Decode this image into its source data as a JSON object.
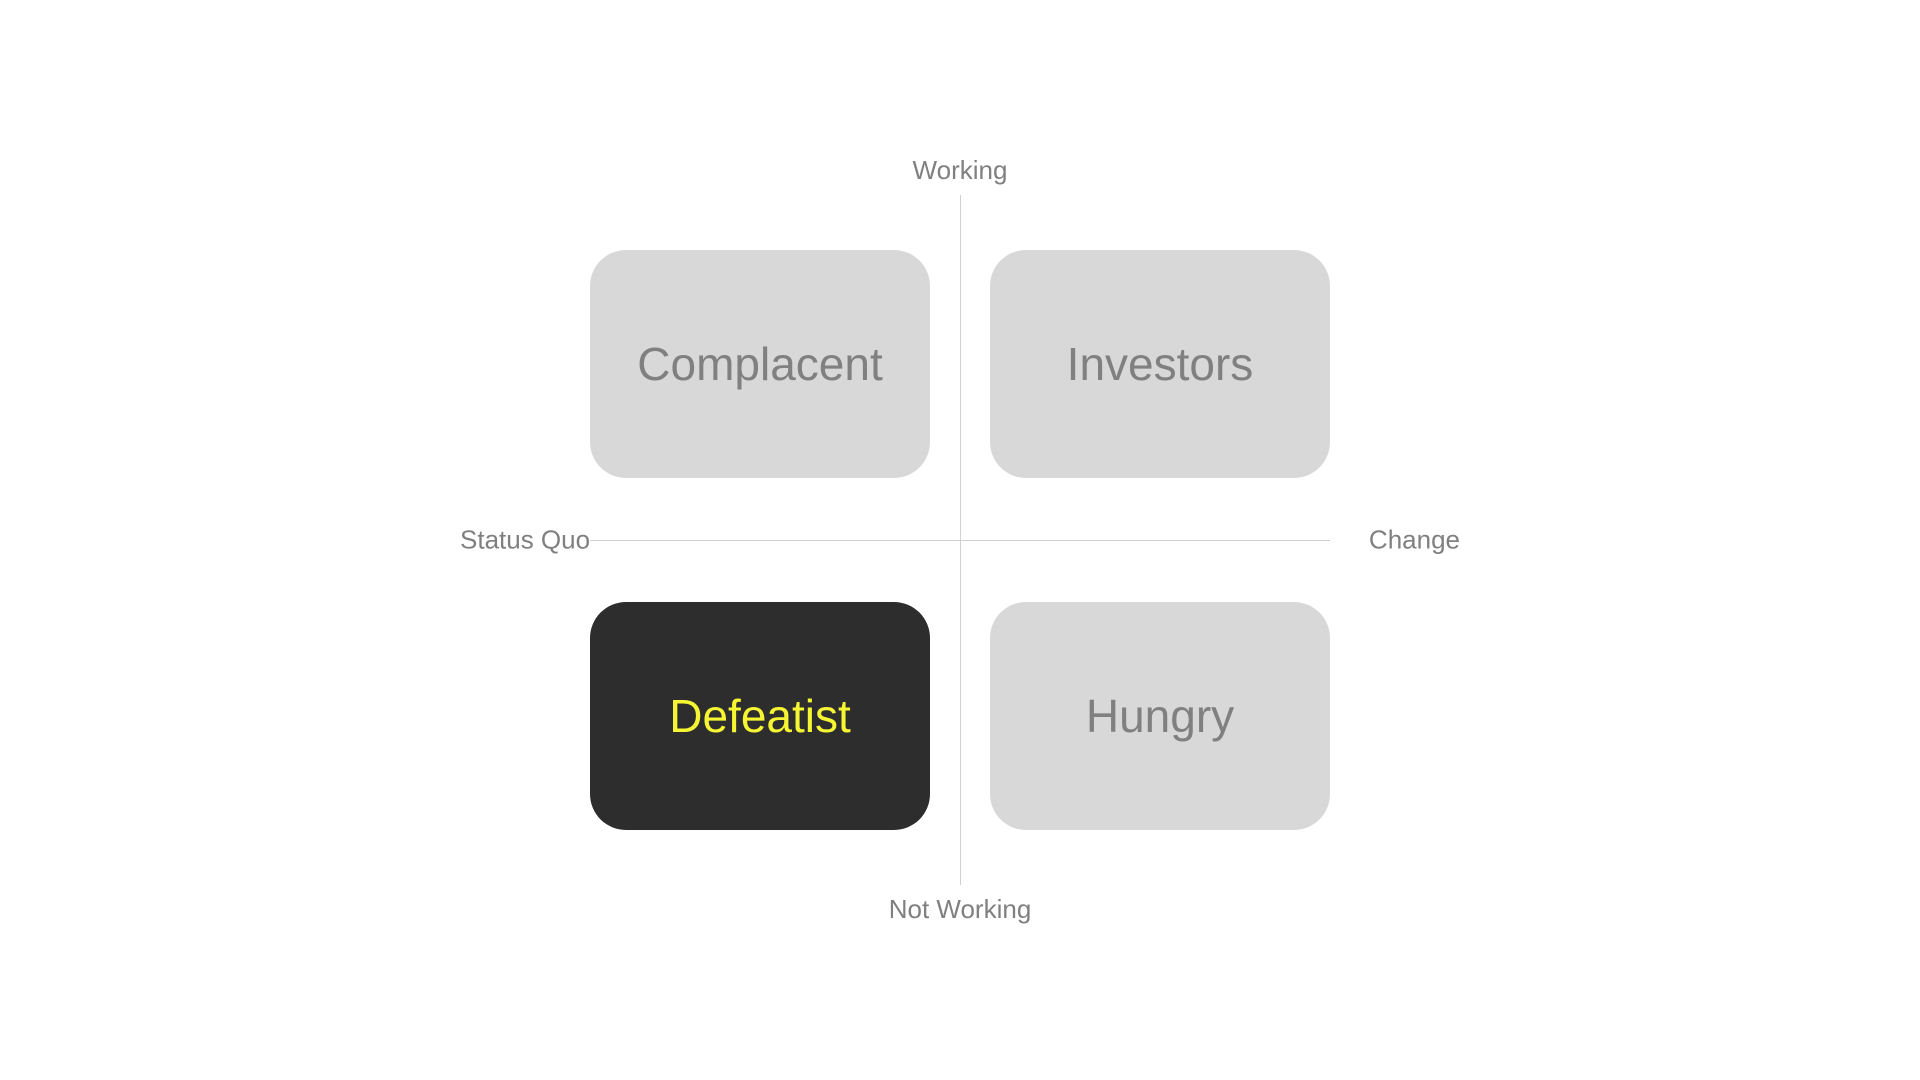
{
  "matrix": {
    "axes": {
      "top": "Working",
      "bottom": "Not Working",
      "left": "Status Quo",
      "right": "Change"
    },
    "quadrants": {
      "top_left": {
        "label": "Complacent",
        "highlighted": false
      },
      "top_right": {
        "label": "Investors",
        "highlighted": false
      },
      "bottom_left": {
        "label": "Defeatist",
        "highlighted": true
      },
      "bottom_right": {
        "label": "Hungry",
        "highlighted": false
      }
    },
    "styling": {
      "background_color": "#ffffff",
      "axis_label_color": "#808080",
      "axis_label_fontsize": 26,
      "axis_line_color": "#d0d0d0",
      "quadrant_width": 340,
      "quadrant_height": 228,
      "quadrant_border_radius": 36,
      "quadrant_fontsize": 46,
      "quadrant_inactive_bg": "#d8d8d8",
      "quadrant_inactive_text": "#808080",
      "quadrant_active_bg": "#2d2d2d",
      "quadrant_active_text": "#f5f533"
    }
  }
}
